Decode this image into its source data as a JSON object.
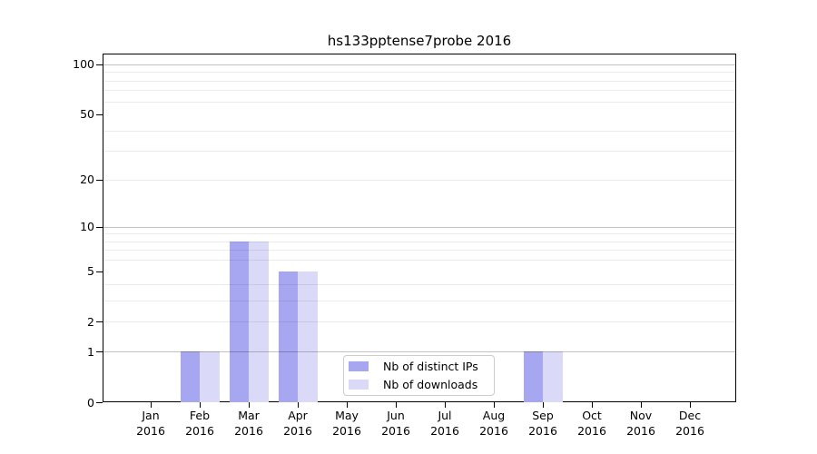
{
  "title": "hs133pptense7probe 2016",
  "legend": {
    "items": [
      {
        "label": "Nb of distinct IPs"
      },
      {
        "label": "Nb of downloads"
      }
    ]
  },
  "chart_data": {
    "type": "bar",
    "title": "hs133pptense7probe 2016",
    "categories": [
      "Jan",
      "Feb",
      "Mar",
      "Apr",
      "May",
      "Jun",
      "Jul",
      "Aug",
      "Sep",
      "Oct",
      "Nov",
      "Dec"
    ],
    "year_label": "2016",
    "series": [
      {
        "name": "Nb of distinct IPs",
        "color": "#a6a6f1",
        "values": [
          0,
          1,
          8,
          5,
          0,
          0,
          0,
          0,
          1,
          0,
          0,
          0
        ]
      },
      {
        "name": "Nb of downloads",
        "color": "#dadaf8",
        "values": [
          0,
          1,
          8,
          5,
          0,
          0,
          0,
          0,
          1,
          0,
          0,
          0
        ]
      }
    ],
    "xlabel": "",
    "ylabel": "",
    "yscale": "log1p",
    "ylim": [
      0,
      116
    ],
    "yticks": [
      0,
      1,
      2,
      5,
      10,
      20,
      50,
      100
    ],
    "grid_major": [
      1,
      10,
      100
    ],
    "grid_minor": [
      2,
      3,
      4,
      6,
      7,
      8,
      9,
      20,
      30,
      40,
      60,
      70,
      80,
      90
    ],
    "grid": "on",
    "legend_position": "lower center"
  }
}
